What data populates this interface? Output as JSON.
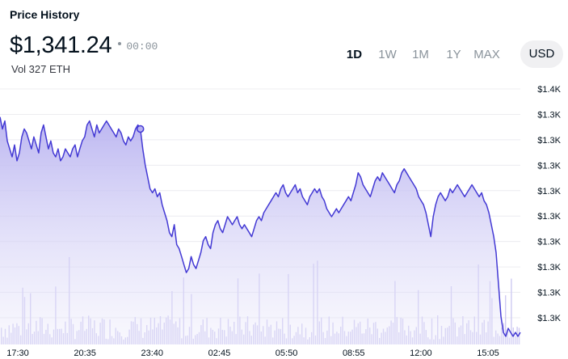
{
  "header": {
    "title": "Price History",
    "price": "$1,341.24",
    "time": "00:00",
    "volume": "Vol 327 ETH"
  },
  "range_tabs": [
    {
      "label": "1D",
      "active": true
    },
    {
      "label": "1W",
      "active": false
    },
    {
      "label": "1M",
      "active": false
    },
    {
      "label": "1Y",
      "active": false
    },
    {
      "label": "MAX",
      "active": false
    }
  ],
  "currency": "USD",
  "colors": {
    "line": "#4339d4",
    "fill": "#c9c5f3",
    "volume": "#cfcaf2",
    "grid": "#ececf0"
  },
  "chart_data": {
    "type": "area",
    "y_tick_labels": [
      "$1.4K",
      "$1.3K",
      "$1.3K",
      "$1.3K",
      "$1.3K",
      "$1.3K",
      "$1.3K",
      "$1.3K",
      "$1.3K",
      "$1.3K"
    ],
    "x_tick_labels": [
      "17:30",
      "20:35",
      "23:40",
      "02:45",
      "05:50",
      "08:55",
      "12:00",
      "15:05"
    ],
    "ylim": [
      1305,
      1365
    ],
    "grid": true,
    "highlight_index": 58,
    "series": [
      {
        "values": [
          1360,
          1357,
          1359,
          1354,
          1352,
          1350,
          1353,
          1349,
          1351,
          1355,
          1357,
          1356,
          1354,
          1352,
          1355,
          1353,
          1351,
          1356,
          1358,
          1355,
          1352,
          1354,
          1351,
          1350,
          1352,
          1349,
          1350,
          1352,
          1351,
          1350,
          1352,
          1353,
          1350,
          1352,
          1354,
          1355,
          1358,
          1359,
          1357,
          1355,
          1358,
          1356,
          1357,
          1358,
          1359,
          1358,
          1357,
          1356,
          1355,
          1357,
          1356,
          1354,
          1353,
          1355,
          1354,
          1355,
          1357,
          1358,
          1357,
          1352,
          1348,
          1345,
          1342,
          1341,
          1342,
          1340,
          1341,
          1338,
          1336,
          1334,
          1331,
          1330,
          1333,
          1328,
          1327,
          1325,
          1323,
          1321,
          1322,
          1325,
          1323,
          1322,
          1324,
          1326,
          1329,
          1330,
          1328,
          1327,
          1331,
          1333,
          1334,
          1332,
          1331,
          1333,
          1335,
          1334,
          1333,
          1334,
          1335,
          1333,
          1332,
          1333,
          1332,
          1331,
          1330,
          1332,
          1334,
          1335,
          1334,
          1336,
          1337,
          1338,
          1339,
          1340,
          1341,
          1340,
          1342,
          1343,
          1341,
          1340,
          1341,
          1342,
          1343,
          1341,
          1342,
          1340,
          1339,
          1338,
          1340,
          1341,
          1342,
          1341,
          1342,
          1340,
          1339,
          1337,
          1336,
          1335,
          1336,
          1337,
          1336,
          1337,
          1338,
          1339,
          1340,
          1339,
          1341,
          1343,
          1346,
          1345,
          1343,
          1342,
          1341,
          1340,
          1342,
          1344,
          1345,
          1344,
          1346,
          1345,
          1344,
          1343,
          1342,
          1341,
          1343,
          1344,
          1346,
          1347,
          1346,
          1345,
          1344,
          1343,
          1342,
          1340,
          1339,
          1338,
          1336,
          1333,
          1330,
          1335,
          1338,
          1340,
          1341,
          1340,
          1339,
          1340,
          1342,
          1341,
          1342,
          1343,
          1342,
          1341,
          1340,
          1341,
          1342,
          1343,
          1342,
          1341,
          1340,
          1341,
          1339,
          1338,
          1336,
          1333,
          1330,
          1326,
          1318,
          1310,
          1306,
          1305,
          1307,
          1306,
          1305,
          1306,
          1305,
          1306
        ]
      }
    ]
  }
}
